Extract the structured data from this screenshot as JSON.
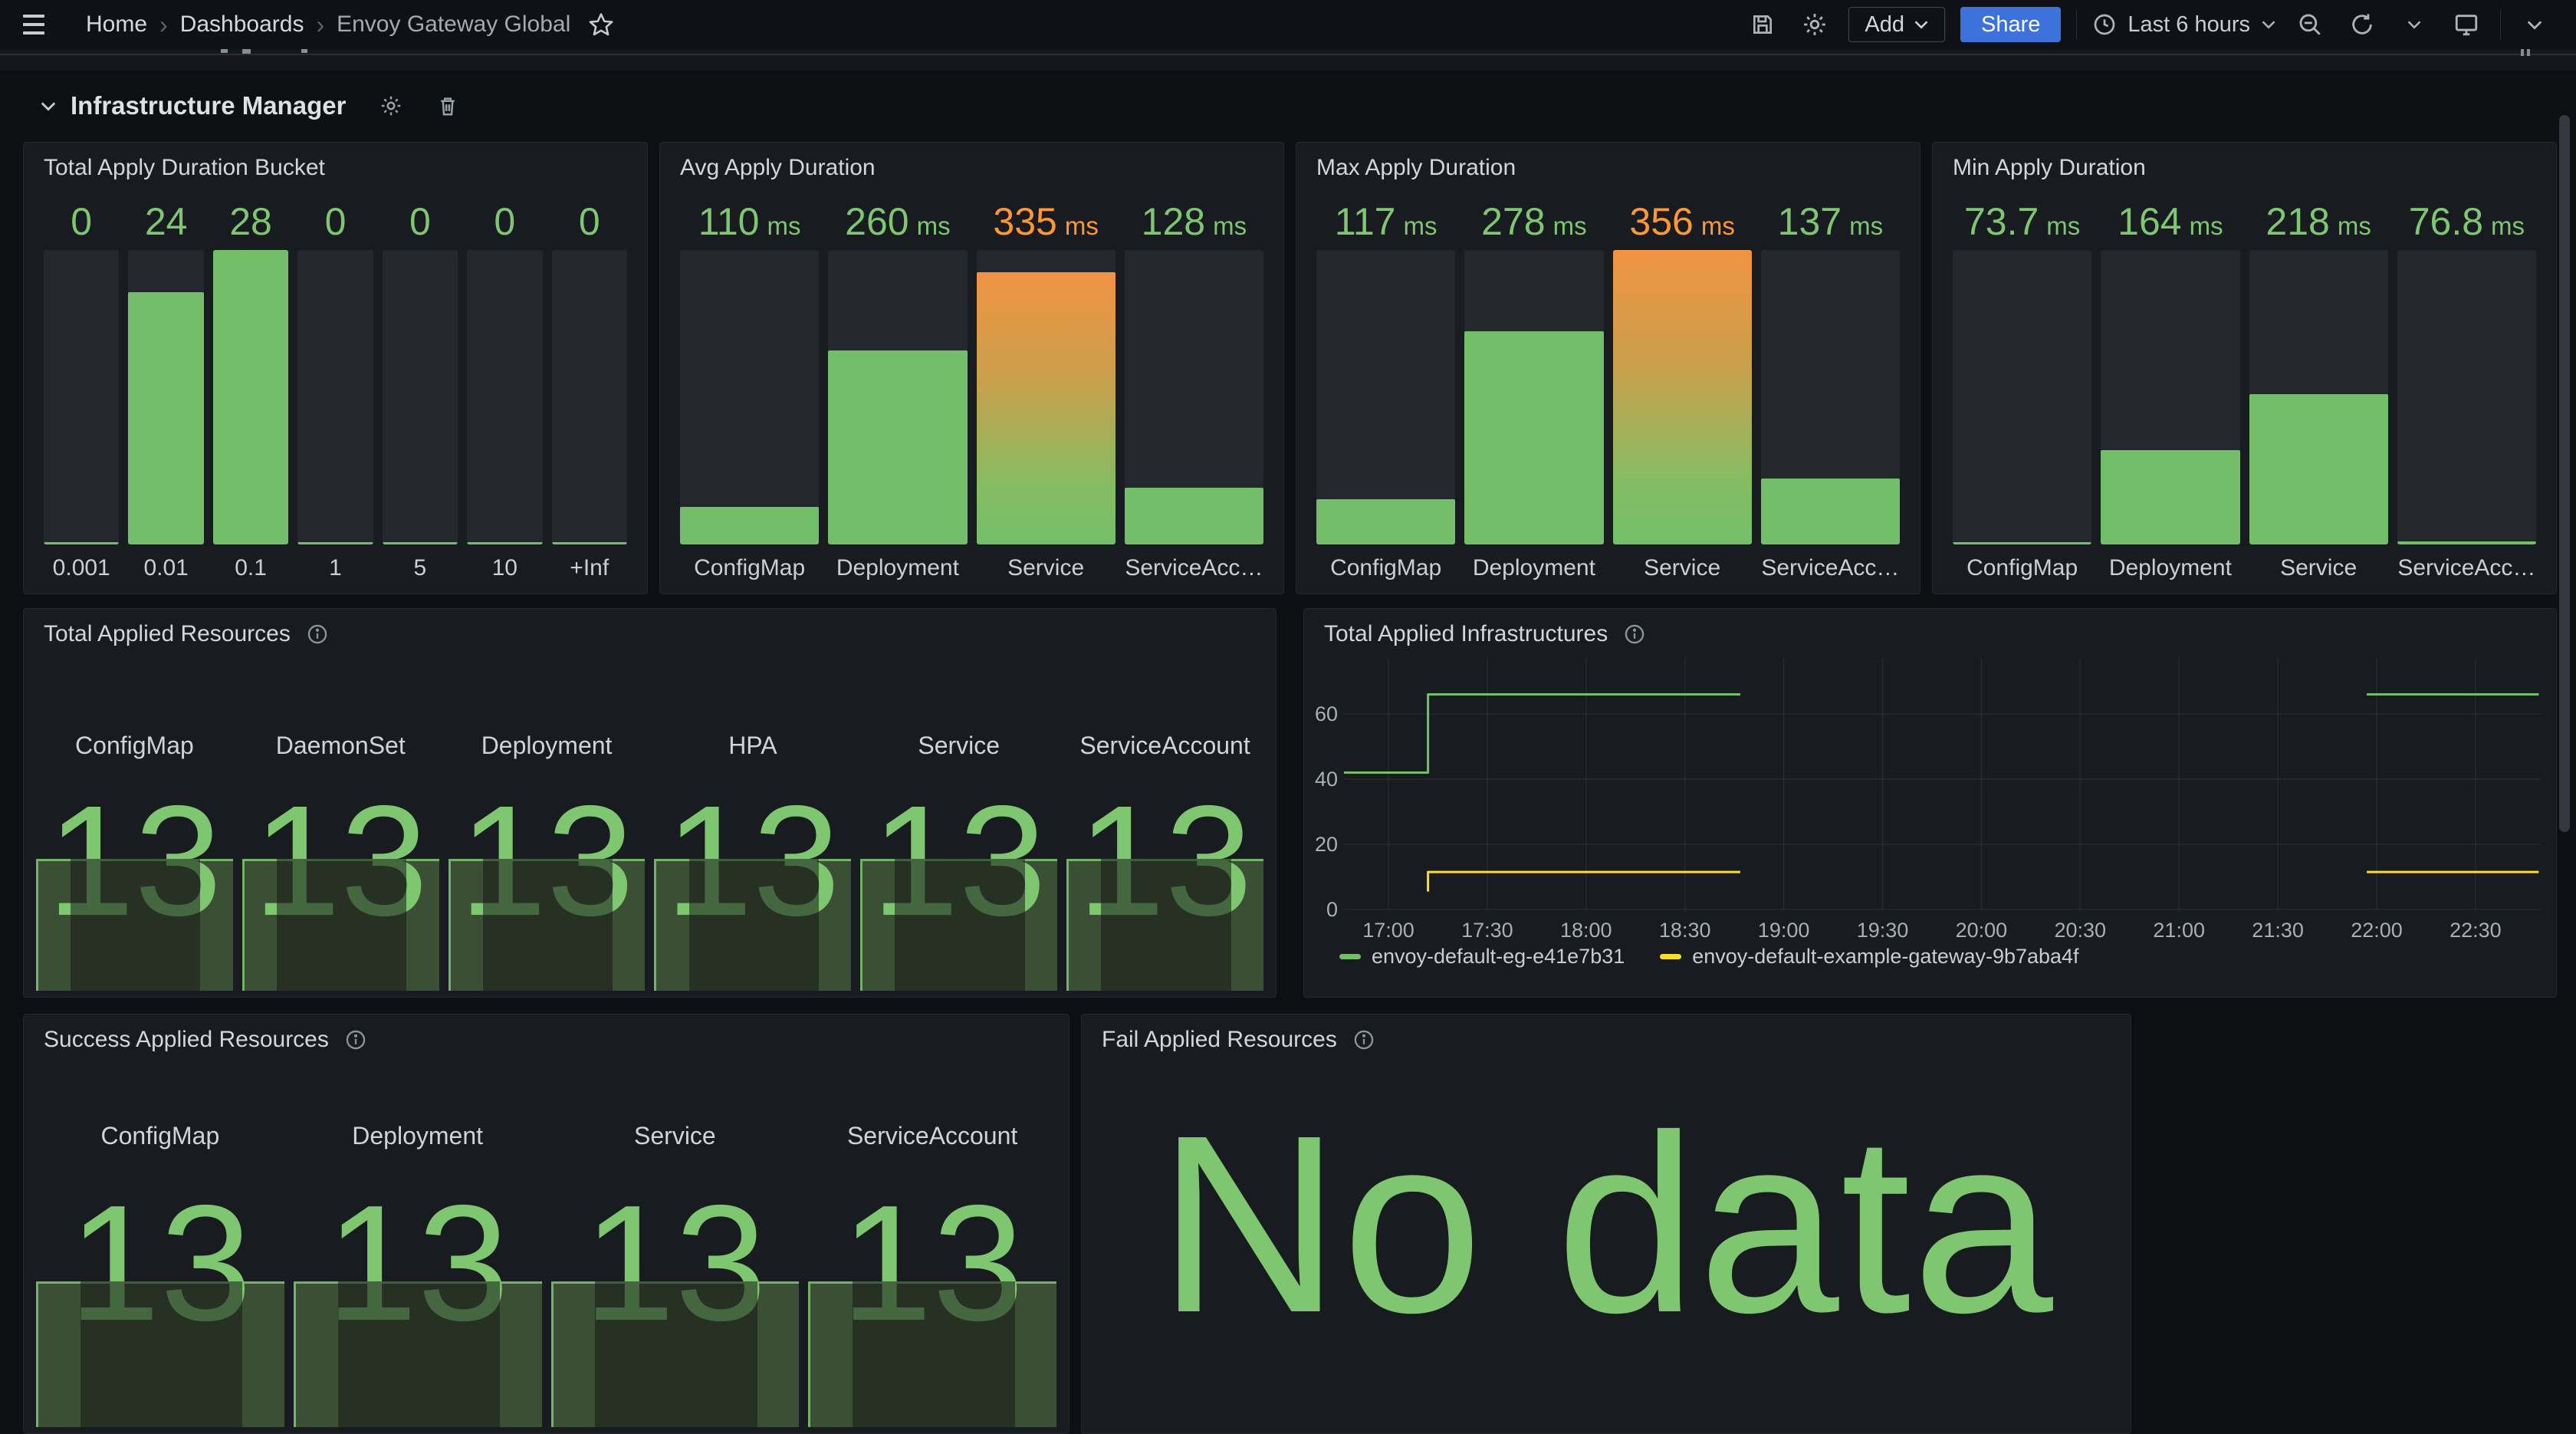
{
  "nav": {
    "breadcrumbs": [
      "Home",
      "Dashboards",
      "Envoy Gateway Global"
    ],
    "add_label": "Add",
    "share_label": "Share",
    "time_range": "Last 6 hours"
  },
  "row_header": {
    "title": "Infrastructure Manager"
  },
  "colors": {
    "green": "#73BF69",
    "green_text": "#7EC66F",
    "orange": "#FF9830",
    "yellow": "#FADE2A",
    "blue": "#3D71DB",
    "track": "#24272E",
    "panel_bg": "#181B20",
    "page_bg": "#0E0F13"
  },
  "chart_data": [
    {
      "panel": "bargauge",
      "type": "bar",
      "title": "Total Apply Duration Bucket",
      "categories": [
        "0.001",
        "0.01",
        "0.1",
        "1",
        "5",
        "10",
        "+Inf"
      ],
      "values": [
        0,
        24,
        28,
        0,
        0,
        0,
        0
      ],
      "display": [
        "0",
        "24",
        "28",
        "0",
        "0",
        "0",
        "0"
      ],
      "unit": "",
      "min": 0,
      "max": 28,
      "value_colors": [
        "green",
        "green",
        "green",
        "green",
        "green",
        "green",
        "green"
      ],
      "gradients": [
        false,
        false,
        false,
        false,
        false,
        false,
        false
      ]
    },
    {
      "panel": "bargauge",
      "type": "bar",
      "title": "Avg Apply Duration",
      "categories": [
        "ConfigMap",
        "Deployment",
        "Service",
        "ServiceAcc…"
      ],
      "values": [
        110,
        260,
        335,
        128
      ],
      "display": [
        "110",
        "260",
        "335",
        "128"
      ],
      "unit": "ms",
      "min": 73.7,
      "max": 356,
      "value_colors": [
        "green",
        "green",
        "orange",
        "green"
      ],
      "gradients": [
        false,
        false,
        true,
        false
      ]
    },
    {
      "panel": "bargauge",
      "type": "bar",
      "title": "Max Apply Duration",
      "categories": [
        "ConfigMap",
        "Deployment",
        "Service",
        "ServiceAcc…"
      ],
      "values": [
        117,
        278,
        356,
        137
      ],
      "display": [
        "117",
        "278",
        "356",
        "137"
      ],
      "unit": "ms",
      "min": 73.7,
      "max": 356,
      "value_colors": [
        "green",
        "green",
        "orange",
        "green"
      ],
      "gradients": [
        false,
        false,
        true,
        false
      ]
    },
    {
      "panel": "bargauge",
      "type": "bar",
      "title": "Min Apply Duration",
      "categories": [
        "ConfigMap",
        "Deployment",
        "Service",
        "ServiceAcc…"
      ],
      "values": [
        73.7,
        164,
        218,
        76.8
      ],
      "display": [
        "73.7",
        "164",
        "218",
        "76.8"
      ],
      "unit": "ms",
      "min": 73.7,
      "max": 356,
      "value_colors": [
        "green",
        "green",
        "green",
        "green"
      ],
      "gradients": [
        false,
        false,
        false,
        false
      ]
    },
    {
      "panel": "stat",
      "type": "bar",
      "title": "Total Applied Resources",
      "has_info": true,
      "items": [
        {
          "label": "ConfigMap",
          "value": "13"
        },
        {
          "label": "DaemonSet",
          "value": "13"
        },
        {
          "label": "Deployment",
          "value": "13"
        },
        {
          "label": "HPA",
          "value": "13"
        },
        {
          "label": "Service",
          "value": "13"
        },
        {
          "label": "ServiceAccount",
          "value": "13"
        }
      ]
    },
    {
      "panel": "timeseries",
      "type": "line",
      "title": "Total Applied Infrastructures",
      "has_info": true,
      "ylim": [
        0,
        70
      ],
      "y_ticks": [
        0,
        20,
        40,
        60
      ],
      "x_ticks": [
        "17:00",
        "17:30",
        "18:00",
        "18:30",
        "19:00",
        "19:30",
        "20:00",
        "20:30",
        "21:00",
        "21:30",
        "22:00",
        "22:30"
      ],
      "x_tick_hours": [
        17,
        17.5,
        18,
        18.5,
        19,
        19.5,
        20,
        20.5,
        21,
        21.5,
        22,
        22.5
      ],
      "series": [
        {
          "name": "envoy-default-eg-e41e7b31",
          "color": "#73BF69",
          "points": [
            [
              16.775,
              42
            ],
            [
              17.2,
              42
            ],
            [
              17.2,
              66
            ],
            [
              18.78,
              66
            ],
            null,
            [
              21.95,
              66
            ],
            [
              22.82,
              66
            ]
          ]
        },
        {
          "name": "envoy-default-example-gateway-9b7aba4f",
          "color": "#FADE2A",
          "points": [
            [
              17.2,
              5.5
            ],
            [
              17.2,
              11.5
            ],
            [
              18.78,
              11.5
            ],
            null,
            [
              21.95,
              11.5
            ],
            [
              22.82,
              11.5
            ]
          ]
        }
      ],
      "legend_position": "bottom",
      "grid": true
    },
    {
      "panel": "stat",
      "type": "bar",
      "title": "Success Applied Resources",
      "has_info": true,
      "items": [
        {
          "label": "ConfigMap",
          "value": "13"
        },
        {
          "label": "Deployment",
          "value": "13"
        },
        {
          "label": "Service",
          "value": "13"
        },
        {
          "label": "ServiceAccount",
          "value": "13"
        }
      ]
    },
    {
      "panel": "nodata",
      "type": "table",
      "title": "Fail Applied Resources",
      "has_info": true,
      "message": "No data"
    }
  ]
}
